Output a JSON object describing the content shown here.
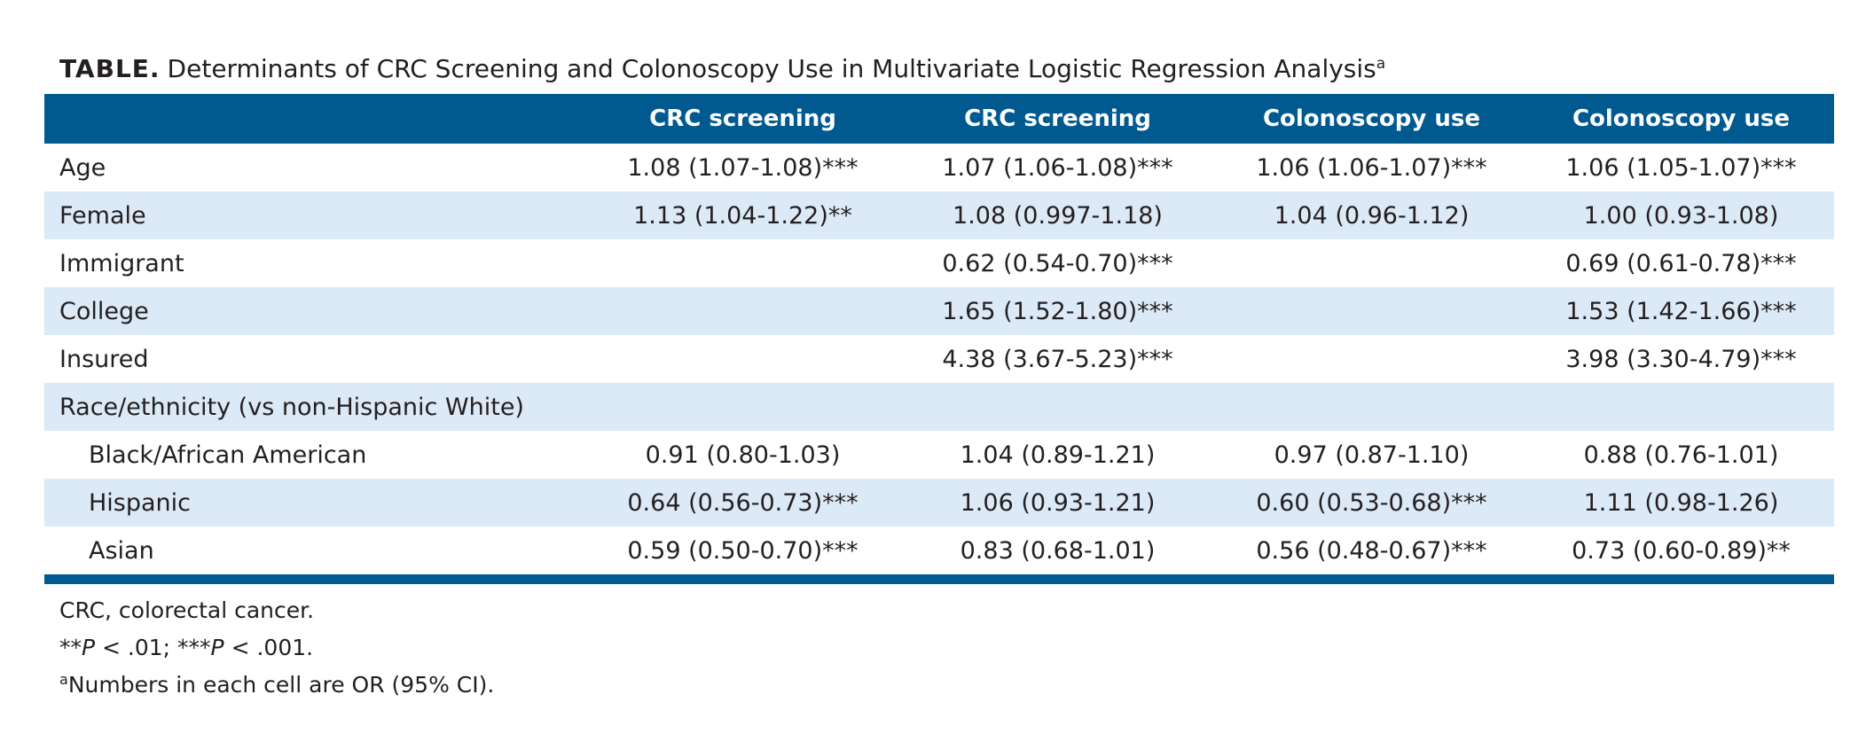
{
  "caption": {
    "label": "TABLE.",
    "text": "Determinants of CRC Screening and Colonoscopy Use in Multivariate Logistic Regression Analysis",
    "footnote_mark": "a"
  },
  "table": {
    "headers": [
      "",
      "CRC screening",
      "CRC screening",
      "Colonoscopy use",
      "Colonoscopy use"
    ],
    "rows": [
      {
        "label": "Age",
        "cells": [
          "1.08 (1.07-1.08)***",
          "1.07 (1.06-1.08)***",
          "1.06 (1.06-1.07)***",
          "1.06 (1.05-1.07)***"
        ]
      },
      {
        "label": "Female",
        "cells": [
          "1.13 (1.04-1.22)**",
          "1.08 (0.997-1.18)",
          "1.04 (0.96-1.12)",
          "1.00 (0.93-1.08)"
        ]
      },
      {
        "label": "Immigrant",
        "cells": [
          "",
          "0.62 (0.54-0.70)***",
          "",
          "0.69 (0.61-0.78)***"
        ]
      },
      {
        "label": "College",
        "cells": [
          "",
          "1.65 (1.52-1.80)***",
          "",
          "1.53 (1.42-1.66)***"
        ]
      },
      {
        "label": "Insured",
        "cells": [
          "",
          "4.38 (3.67-5.23)***",
          "",
          "3.98 (3.30-4.79)***"
        ]
      },
      {
        "label": "Race/ethnicity (vs non-Hispanic White)",
        "cells": [
          "",
          "",
          "",
          ""
        ]
      },
      {
        "label": "Black/African American",
        "cells": [
          "0.91 (0.80-1.03)",
          "1.04 (0.89-1.21)",
          "0.97 (0.87-1.10)",
          "0.88 (0.76-1.01)"
        ]
      },
      {
        "label": "Hispanic",
        "cells": [
          "0.64 (0.56-0.73)***",
          "1.06 (0.93-1.21)",
          "0.60 (0.53-0.68)***",
          "1.11 (0.98-1.26)"
        ]
      },
      {
        "label": "Asian",
        "cells": [
          "0.59 (0.50-0.70)***",
          "0.83 (0.68-1.01)",
          "0.56 (0.48-0.67)***",
          "0.73 (0.60-0.89)**"
        ]
      }
    ]
  },
  "notes": {
    "abbrev": "CRC, colorectal cancer.",
    "sig_1_stars": "**",
    "sig_1_p": "P",
    "sig_1_value": " < .01; ",
    "sig_2_stars": "***",
    "sig_2_p": "P",
    "sig_2_value": " < .001.",
    "footnote_mark": "a",
    "footnote_text": "Numbers in each cell are OR (95% CI)."
  },
  "colors": {
    "header_bg": "#005a8f",
    "stripe_bg": "#dce9f7",
    "text": "#231f20"
  }
}
